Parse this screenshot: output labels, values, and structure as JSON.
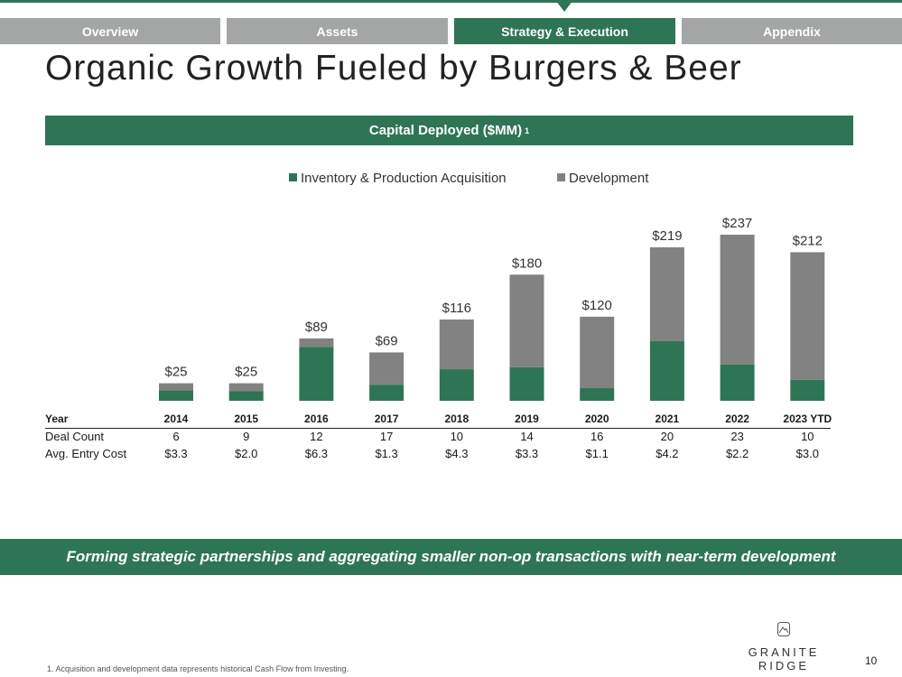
{
  "nav": {
    "tabs": [
      {
        "label": "Overview"
      },
      {
        "label": "Assets"
      },
      {
        "label": "Strategy & Execution"
      },
      {
        "label": "Appendix"
      }
    ],
    "active_index": 2
  },
  "title": "Organic Growth Fueled by Burgers & Beer",
  "section_header": {
    "label": "Capital Deployed ($MM)",
    "footnote_marker": "1"
  },
  "chart_data": {
    "type": "bar",
    "stacked": true,
    "title": "Capital Deployed ($MM)",
    "categories": [
      "2014",
      "2015",
      "2016",
      "2017",
      "2018",
      "2019",
      "2020",
      "2021",
      "2022",
      "2023 YTD"
    ],
    "series": [
      {
        "name": "Inventory & Production Acquisition",
        "color": "#2e7556",
        "values": [
          15,
          14,
          77,
          23,
          45,
          48,
          18,
          85,
          52,
          30
        ]
      },
      {
        "name": "Development",
        "color": "#828282",
        "values": [
          10,
          11,
          12,
          46,
          71,
          132,
          102,
          134,
          185,
          182
        ]
      }
    ],
    "totals": [
      25,
      25,
      89,
      69,
      116,
      180,
      120,
      219,
      237,
      212
    ],
    "total_labels": [
      "$25",
      "$25",
      "$89",
      "$69",
      "$116",
      "$180",
      "$120",
      "$219",
      "$237",
      "$212"
    ],
    "ylim": [
      0,
      237
    ],
    "legend_position": "top-center",
    "grid": false,
    "xlabel": "",
    "ylabel": ""
  },
  "table": {
    "header_label": "Year",
    "rows": [
      {
        "label": "Deal Count",
        "values": [
          "6",
          "9",
          "12",
          "17",
          "10",
          "14",
          "16",
          "20",
          "23",
          "10"
        ]
      },
      {
        "label": "Avg. Entry Cost",
        "values": [
          "$3.3",
          "$2.0",
          "$6.3",
          "$1.3",
          "$4.3",
          "$3.3",
          "$1.1",
          "$4.2",
          "$2.2",
          "$3.0"
        ]
      }
    ]
  },
  "banner": "Forming strategic partnerships and aggregating smaller non-op transactions with near-term development",
  "logo": {
    "text": "GRANITE RIDGE",
    "icon": "mountain-icon"
  },
  "footnote": "1.  Acquisition and development data represents historical Cash Flow from Investing.",
  "page_number": "10",
  "colors": {
    "accent": "#2e7556",
    "gray": "#828282",
    "tab_gray": "#a3a6a4"
  }
}
